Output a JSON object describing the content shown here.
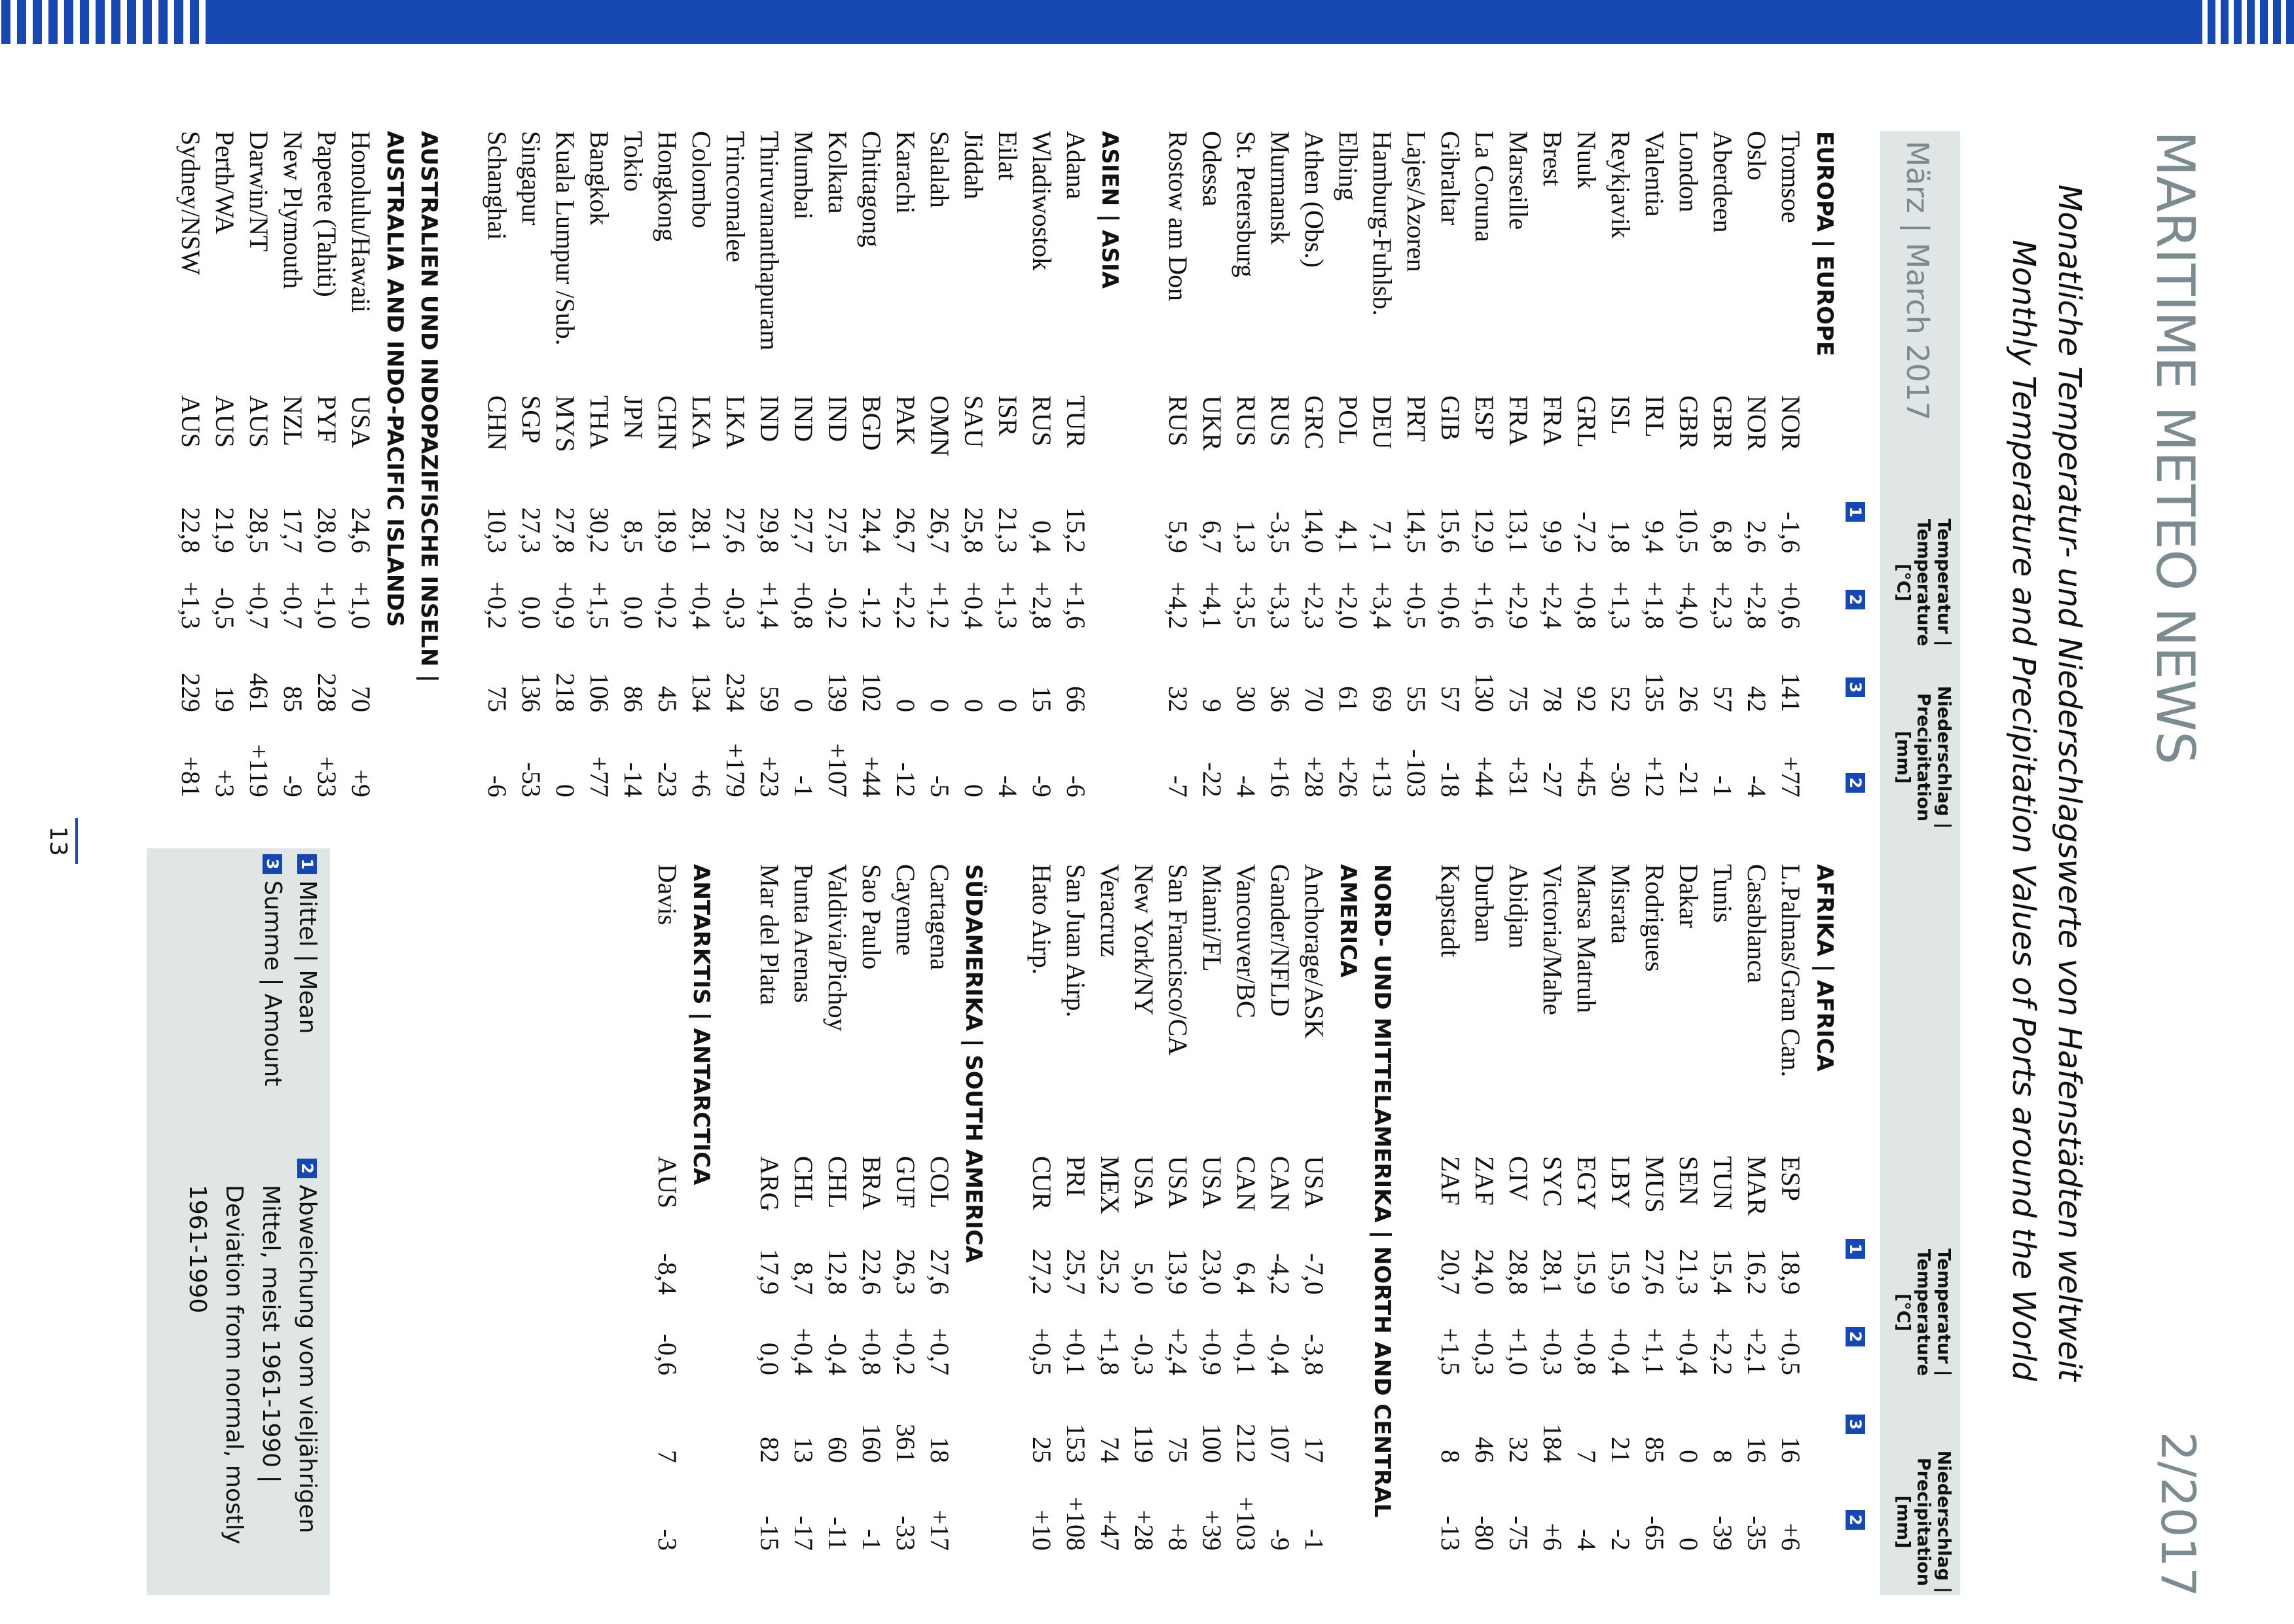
{
  "header": {
    "title": "MARITIME METEO NEWS",
    "issue": "2/2017"
  },
  "heading": {
    "line1": "Monatliche Temperatur- und Niederschlagswerte von Hafenstädten weltweit",
    "line2": "Monthly Temperature and Precipitation Values of Ports around the World"
  },
  "band": {
    "month": "März | March 2017",
    "temperature_header": [
      "Temperatur |",
      "Temperature",
      "[°C]"
    ],
    "precipitation_header": [
      "Niederschlag |",
      "Precipitation",
      "[mm]"
    ],
    "markers": [
      "1",
      "2",
      "3",
      "2"
    ]
  },
  "left": {
    "sections": [
      {
        "title": [
          "EUROPA | EUROPE"
        ],
        "rows": [
          [
            "Tromsoe",
            "NOR",
            "-1,6",
            "+0,6",
            "141",
            "+77"
          ],
          [
            "Oslo",
            "NOR",
            "2,6",
            "+2,8",
            "42",
            "-4"
          ],
          [
            "Aberdeen",
            "GBR",
            "6,8",
            "+2,3",
            "57",
            "-1"
          ],
          [
            "London",
            "GBR",
            "10,5",
            "+4,0",
            "26",
            "-21"
          ],
          [
            "Valentia",
            "IRL",
            "9,4",
            "+1,8",
            "135",
            "+12"
          ],
          [
            "Reykjavik",
            "ISL",
            "1,8",
            "+1,3",
            "52",
            "-30"
          ],
          [
            "Nuuk",
            "GRL",
            "-7,2",
            "+0,8",
            "92",
            "+45"
          ],
          [
            "Brest",
            "FRA",
            "9,9",
            "+2,4",
            "78",
            "-27"
          ],
          [
            "Marseille",
            "FRA",
            "13,1",
            "+2,9",
            "75",
            "+31"
          ],
          [
            "La Coruna",
            "ESP",
            "12,9",
            "+1,6",
            "130",
            "+44"
          ],
          [
            "Gibraltar",
            "GIB",
            "15,6",
            "+0,6",
            "57",
            "-18"
          ],
          [
            "Lajes/Azoren",
            "PRT",
            "14,5",
            "+0,5",
            "55",
            "-103"
          ],
          [
            "Hamburg-Fuhlsb.",
            "DEU",
            "7,1",
            "+3,4",
            "69",
            "+13"
          ],
          [
            "Elbing",
            "POL",
            "4,1",
            "+2,0",
            "61",
            "+26"
          ],
          [
            "Athen (Obs.)",
            "GRC",
            "14,0",
            "+2,3",
            "70",
            "+28"
          ],
          [
            "Murmansk",
            "RUS",
            "-3,5",
            "+3,3",
            "36",
            "+16"
          ],
          [
            "St. Petersburg",
            "RUS",
            "1,3",
            "+3,5",
            "30",
            "-4"
          ],
          [
            "Odessa",
            "UKR",
            "6,7",
            "+4,1",
            "9",
            "-22"
          ],
          [
            "Rostow am Don",
            "RUS",
            "5,9",
            "+4,2",
            "32",
            "-7"
          ]
        ]
      },
      {
        "title": [
          "ASIEN | ASIA"
        ],
        "rows": [
          [
            "Adana",
            "TUR",
            "15,2",
            "+1,6",
            "66",
            "-6"
          ],
          [
            "Wladiwostok",
            "RUS",
            "0,4",
            "+2,8",
            "15",
            "-9"
          ],
          [
            "Eilat",
            "ISR",
            "21,3",
            "+1,3",
            "0",
            "-4"
          ],
          [
            "Jiddah",
            "SAU",
            "25,8",
            "+0,4",
            "0",
            "0"
          ],
          [
            "Salalah",
            "OMN",
            "26,7",
            "+1,2",
            "0",
            "-5"
          ],
          [
            "Karachi",
            "PAK",
            "26,7",
            "+2,2",
            "0",
            "-12"
          ],
          [
            "Chittagong",
            "BGD",
            "24,4",
            "-1,2",
            "102",
            "+44"
          ],
          [
            "Kolkata",
            "IND",
            "27,5",
            "-0,2",
            "139",
            "+107"
          ],
          [
            "Mumbai",
            "IND",
            "27,7",
            "+0,8",
            "0",
            "-1"
          ],
          [
            "Thiruvananthapuram",
            "IND",
            "29,8",
            "+1,4",
            "59",
            "+23"
          ],
          [
            "Trincomalee",
            "LKA",
            "27,6",
            "-0,3",
            "234",
            "+179"
          ],
          [
            "Colombo",
            "LKA",
            "28,1",
            "+0,4",
            "134",
            "+6"
          ],
          [
            "Hongkong",
            "CHN",
            "18,9",
            "+0,2",
            "45",
            "-23"
          ],
          [
            "Tokio",
            "JPN",
            "8,5",
            "0,0",
            "86",
            "-14"
          ],
          [
            "Bangkok",
            "THA",
            "30,2",
            "+1,5",
            "106",
            "+77"
          ],
          [
            "Kuala Lumpur /Sub.",
            "MYS",
            "27,8",
            "+0,9",
            "218",
            "0"
          ],
          [
            "Singapur",
            "SGP",
            "27,3",
            "0,0",
            "136",
            "-53"
          ],
          [
            "Schanghai",
            "CHN",
            "10,3",
            "+0,2",
            "75",
            "-6"
          ]
        ]
      },
      {
        "title": [
          "AUSTRALIEN UND INDOPAZIFISCHE INSELN |",
          "AUSTRALIA AND INDO-PACIFIC ISLANDS"
        ],
        "rows": [
          [
            "Honolulu/Hawaii",
            "USA",
            "24,6",
            "+1,0",
            "70",
            "+9"
          ],
          [
            "Papeete (Tahiti)",
            "PYF",
            "28,0",
            "+1,0",
            "228",
            "+33"
          ],
          [
            "New Plymouth",
            "NZL",
            "17,7",
            "+0,7",
            "85",
            "-9"
          ],
          [
            "Darwin/NT",
            "AUS",
            "28,5",
            "+0,7",
            "461",
            "+119"
          ],
          [
            "Perth/WA",
            "AUS",
            "21,9",
            "-0,5",
            "19",
            "+3"
          ],
          [
            "Sydney/NSW",
            "AUS",
            "22,8",
            "+1,3",
            "229",
            "+81"
          ]
        ]
      }
    ]
  },
  "right": {
    "sections": [
      {
        "title": [
          "AFRIKA | AFRICA"
        ],
        "rows": [
          [
            "L.Palmas/Gran Can.",
            "ESP",
            "18,9",
            "+0,5",
            "16",
            "+6"
          ],
          [
            "Casablanca",
            "MAR",
            "16,2",
            "+2,1",
            "16",
            "-35"
          ],
          [
            "Tunis",
            "TUN",
            "15,4",
            "+2,2",
            "8",
            "-39"
          ],
          [
            "Dakar",
            "SEN",
            "21,3",
            "+0,4",
            "0",
            "0"
          ],
          [
            "Rodrigues",
            "MUS",
            "27,6",
            "+1,1",
            "85",
            "-65"
          ],
          [
            "Misrata",
            "LBY",
            "15,9",
            "+0,4",
            "21",
            "-2"
          ],
          [
            "Marsa Matruh",
            "EGY",
            "15,9",
            "+0,8",
            "7",
            "-4"
          ],
          [
            "Victoria/Mahe",
            "SYC",
            "28,1",
            "+0,3",
            "184",
            "+6"
          ],
          [
            "Abidjan",
            "CIV",
            "28,8",
            "+1,0",
            "32",
            "-75"
          ],
          [
            "Durban",
            "ZAF",
            "24,0",
            "+0,3",
            "46",
            "-80"
          ],
          [
            "Kapstadt",
            "ZAF",
            "20,7",
            "+1,5",
            "8",
            "-13"
          ]
        ]
      },
      {
        "title": [
          "NORD- UND MITTELAMERIKA | NORTH AND CENTRAL",
          "AMERICA"
        ],
        "rows": [
          [
            "Anchorage/ASK",
            "USA",
            "-7,0",
            "-3,8",
            "17",
            "-1"
          ],
          [
            "Gander/NFLD",
            "CAN",
            "-4,2",
            "-0,4",
            "107",
            "-9"
          ],
          [
            "Vancouver/BC",
            "CAN",
            "6,4",
            "+0,1",
            "212",
            "+103"
          ],
          [
            "Miami/FL",
            "USA",
            "23,0",
            "+0,9",
            "100",
            "+39"
          ],
          [
            "San Francisco/CA",
            "USA",
            "13,9",
            "+2,4",
            "75",
            "+8"
          ],
          [
            "New York/NY",
            "USA",
            "5,0",
            "-0,3",
            "119",
            "+28"
          ],
          [
            "Veracruz",
            "MEX",
            "25,2",
            "+1,8",
            "74",
            "+47"
          ],
          [
            "San Juan Airp.",
            "PRI",
            "25,7",
            "+0,1",
            "153",
            "+108"
          ],
          [
            "Hato Airp.",
            "CUR",
            "27,2",
            "+0,5",
            "25",
            "+10"
          ]
        ]
      },
      {
        "title": [
          "SÜDAMERIKA | SOUTH AMERICA"
        ],
        "rows": [
          [
            "Cartagena",
            "COL",
            "27,6",
            "+0,7",
            "18",
            "+17"
          ],
          [
            "Cayenne",
            "GUF",
            "26,3",
            "+0,2",
            "361",
            "-33"
          ],
          [
            "Sao Paulo",
            "BRA",
            "22,6",
            "+0,8",
            "160",
            "-1"
          ],
          [
            "Valdivia/Pichoy",
            "CHL",
            "12,8",
            "-0,4",
            "60",
            "-11"
          ],
          [
            "Punta Arenas",
            "CHL",
            "8,7",
            "+0,4",
            "13",
            "-17"
          ],
          [
            "Mar del Plata",
            "ARG",
            "17,9",
            "0,0",
            "82",
            "-15"
          ]
        ]
      },
      {
        "title": [
          "ANTARKTIS | ANTARCTICA"
        ],
        "rows": [
          [
            "Davis",
            "AUS",
            "-8,4",
            "-0,6",
            "7",
            "-3"
          ]
        ]
      }
    ]
  },
  "legend": [
    {
      "marker": "1",
      "lines": [
        "Mittel | Mean"
      ]
    },
    {
      "marker": "3",
      "lines": [
        "Summe | Amount"
      ]
    },
    {
      "marker": "2",
      "lines": [
        "Abweichung vom vieljährigen",
        "Mittel, meist 1961-1990 |",
        "Deviation from normal, mostly",
        "1961-1990"
      ]
    }
  ],
  "page_number": "13"
}
